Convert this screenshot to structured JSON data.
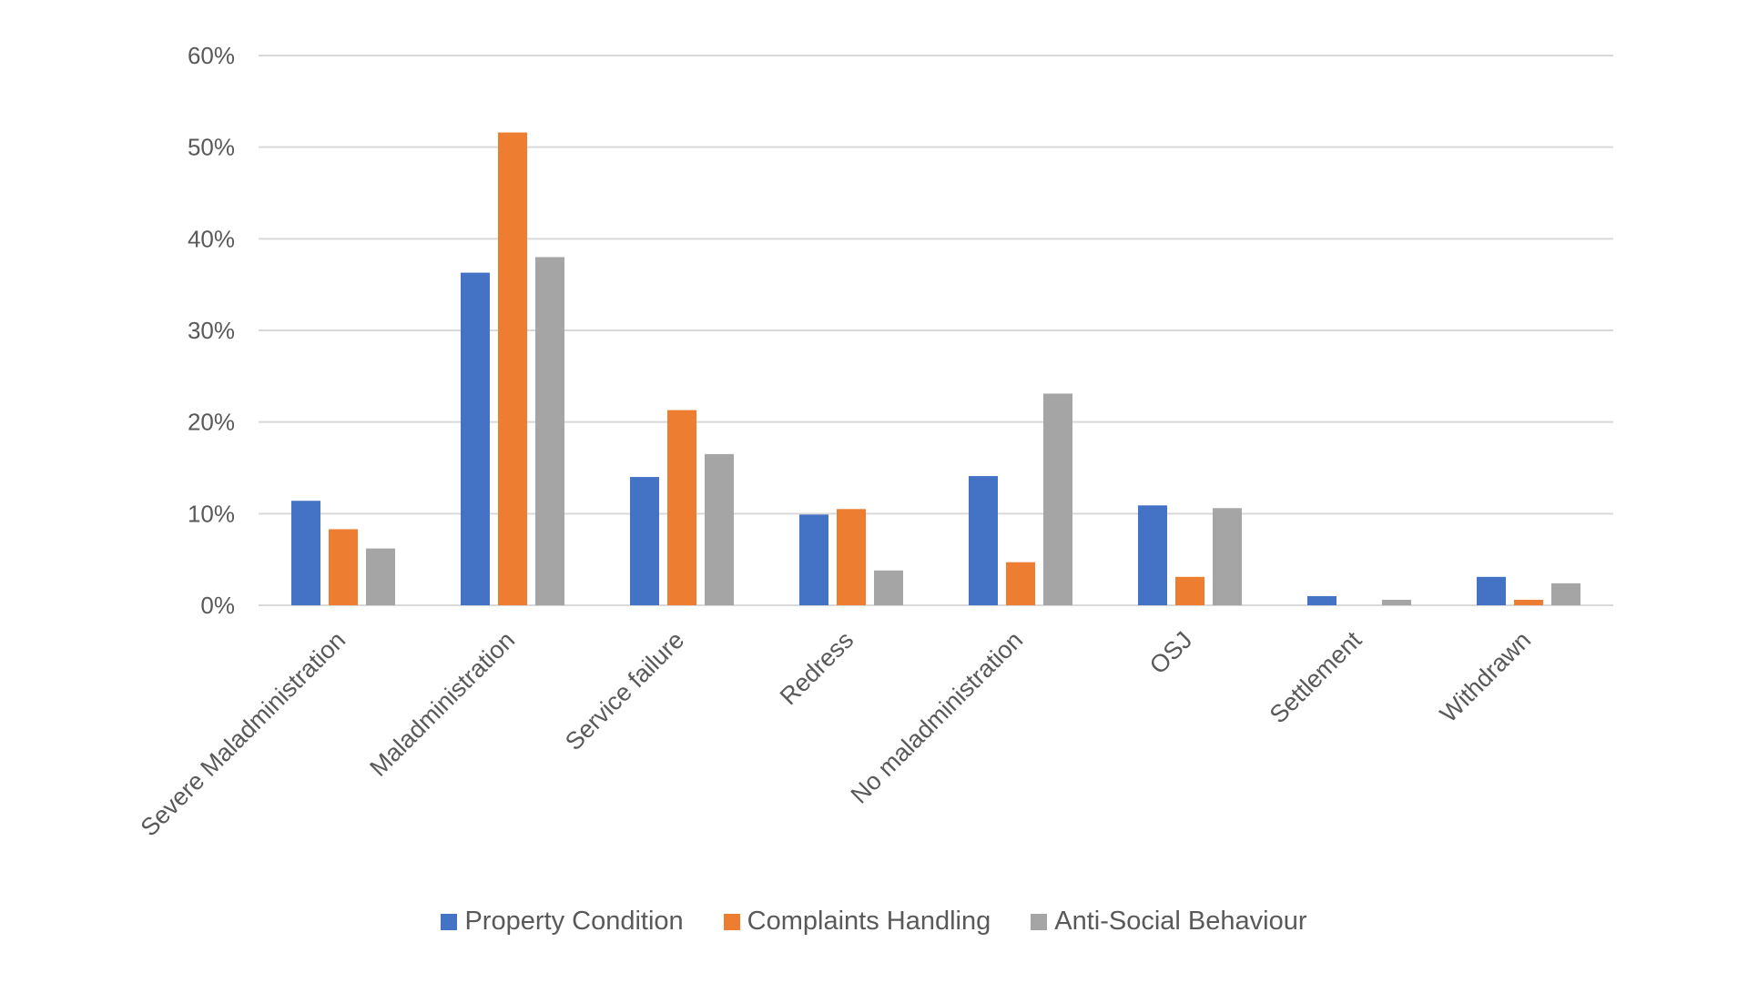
{
  "chart_data": {
    "type": "bar",
    "title": "",
    "xlabel": "",
    "ylabel": "",
    "ylim": [
      0,
      60
    ],
    "yticks": [
      "0%",
      "10%",
      "20%",
      "30%",
      "40%",
      "50%",
      "60%"
    ],
    "ytick_values": [
      0,
      10,
      20,
      30,
      40,
      50,
      60
    ],
    "grid": true,
    "legend_position": "bottom",
    "categories": [
      "Severe Maladministration",
      "Maladministration",
      "Service failure",
      "Redress",
      "No maladministration",
      "OSJ",
      "Settlement",
      "Withdrawn"
    ],
    "series": [
      {
        "name": "Property Condition",
        "color": "#4472C4",
        "values": [
          11.4,
          36.3,
          14.0,
          9.9,
          14.1,
          10.9,
          1.0,
          3.1
        ]
      },
      {
        "name": "Complaints Handling",
        "color": "#ED7D31",
        "values": [
          8.3,
          51.6,
          21.3,
          10.5,
          4.7,
          3.1,
          0.0,
          0.6
        ]
      },
      {
        "name": "Anti-Social Behaviour",
        "color": "#A5A5A5",
        "values": [
          6.2,
          38.0,
          16.5,
          3.8,
          23.1,
          10.6,
          0.6,
          2.4
        ]
      }
    ]
  }
}
